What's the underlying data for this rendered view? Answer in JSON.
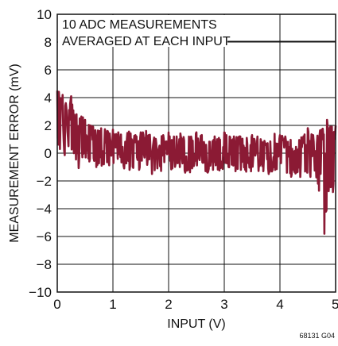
{
  "chart_data": {
    "type": "line",
    "xlabel": "INPUT (V)",
    "ylabel": "MEASUREMENT ERROR (mV)",
    "xlim": [
      0,
      5
    ],
    "ylim": [
      -10,
      10
    ],
    "x_ticks": [
      "0",
      "1",
      "2",
      "3",
      "4",
      "5"
    ],
    "y_ticks": [
      "10",
      "8",
      "6",
      "4",
      "2",
      "0",
      "−2",
      "−4",
      "−6",
      "−8",
      "−10"
    ],
    "annotation": [
      "10 ADC MEASUREMENTS",
      "AVERAGED AT EACH INPUT"
    ],
    "figure_id": "68131 G04",
    "grid": true,
    "line_color": "#8b1a34",
    "series": [
      {
        "x": [
          0.0,
          0.05,
          0.1,
          0.15,
          0.2,
          0.25,
          0.3,
          0.35,
          0.4,
          0.45,
          0.5,
          0.6,
          0.7,
          0.8,
          0.9,
          1.0,
          1.1,
          1.2,
          1.3,
          1.4,
          1.5,
          1.6,
          1.7,
          1.8,
          1.9,
          2.0,
          2.1,
          2.2,
          2.3,
          2.4,
          2.5,
          2.6,
          2.7,
          2.8,
          2.9,
          3.0,
          3.1,
          3.2,
          3.3,
          3.4,
          3.5,
          3.6,
          3.7,
          3.8,
          3.9,
          4.0,
          4.1,
          4.2,
          4.3,
          4.4,
          4.5,
          4.6,
          4.7,
          4.75,
          4.8,
          4.85,
          4.9,
          4.95,
          5.0
        ],
        "y": [
          2.5,
          3.0,
          2.8,
          2.0,
          1.8,
          2.2,
          1.5,
          1.6,
          1.0,
          1.2,
          0.8,
          0.6,
          0.5,
          0.7,
          0.3,
          0.4,
          0.3,
          0.2,
          0.3,
          0.1,
          0.2,
          0.3,
          0.0,
          0.2,
          0.1,
          0.2,
          0.0,
          0.3,
          0.1,
          0.0,
          0.2,
          0.1,
          0.0,
          0.2,
          -0.1,
          0.2,
          0.0,
          0.1,
          0.0,
          -0.2,
          0.1,
          0.0,
          0.2,
          -0.1,
          0.0,
          0.1,
          0.0,
          -0.2,
          0.2,
          -0.3,
          0.1,
          -0.5,
          -0.2,
          -0.8,
          -1.5,
          -0.6,
          -0.3,
          0.0,
          0.5
        ],
        "min": [
          -0.5,
          0.3,
          0.0,
          -0.3,
          0.5,
          -0.2,
          0.0,
          -1.0,
          -1.2,
          -0.3,
          -0.5,
          -0.8,
          -1.0,
          -0.9,
          -1.0,
          -1.2,
          -1.0,
          -1.1,
          -1.2,
          -1.0,
          -1.3,
          -1.0,
          -1.5,
          -1.1,
          -1.4,
          -1.2,
          -1.3,
          -1.0,
          -1.4,
          -1.5,
          -1.1,
          -1.3,
          -1.4,
          -1.2,
          -1.5,
          -1.0,
          -1.4,
          -1.3,
          -1.2,
          -1.9,
          -1.2,
          -1.4,
          -1.3,
          -1.5,
          -1.4,
          -1.2,
          -1.5,
          -1.7,
          -1.4,
          -2.0,
          -1.6,
          -2.3,
          -2.7,
          -3.0,
          -5.8,
          -3.5,
          -2.4,
          -2.8,
          -1.2
        ],
        "max": [
          4.5,
          4.4,
          4.2,
          3.6,
          3.4,
          4.1,
          3.0,
          2.8,
          2.5,
          2.8,
          2.4,
          2.0,
          1.8,
          2.1,
          1.6,
          1.7,
          1.5,
          1.4,
          1.6,
          1.3,
          1.5,
          1.6,
          1.2,
          1.4,
          1.3,
          1.5,
          1.2,
          1.6,
          1.3,
          1.2,
          1.5,
          1.3,
          1.2,
          1.4,
          1.1,
          1.5,
          1.2,
          1.3,
          1.2,
          1.1,
          1.3,
          1.2,
          1.5,
          1.1,
          1.4,
          1.3,
          1.2,
          1.0,
          1.6,
          1.1,
          1.8,
          1.3,
          1.9,
          1.7,
          2.2,
          2.4,
          1.9,
          2.0,
          2.0
        ]
      }
    ]
  }
}
